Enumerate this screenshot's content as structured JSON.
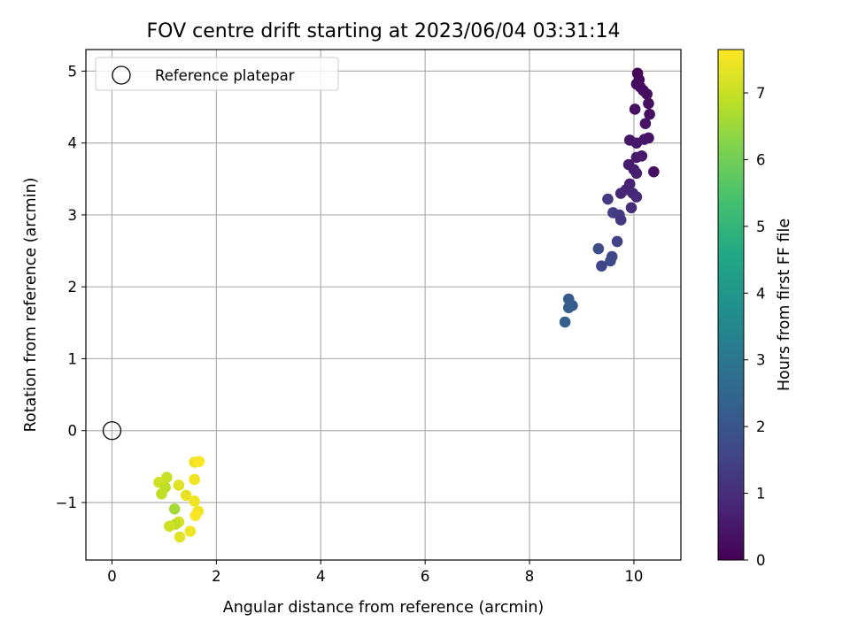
{
  "chart_data": {
    "type": "scatter",
    "title": "FOV centre drift starting at 2023/06/04 03:31:14",
    "xlabel": "Angular distance from reference (arcmin)",
    "ylabel": "Rotation from reference (arcmin)",
    "xlim": [
      -0.5,
      10.9
    ],
    "ylim": [
      -1.8,
      5.3
    ],
    "xticks": [
      0,
      2,
      4,
      6,
      8,
      10
    ],
    "yticks": [
      -1,
      0,
      1,
      2,
      3,
      4,
      5
    ],
    "xtick_labels": [
      "0",
      "2",
      "4",
      "6",
      "8",
      "10"
    ],
    "ytick_labels": [
      "−1",
      "0",
      "1",
      "2",
      "3",
      "4",
      "5"
    ],
    "grid": true,
    "legend": {
      "position": "top-left",
      "entries": [
        {
          "label": "Reference platepar",
          "marker": "open-circle",
          "color": "#000000"
        }
      ]
    },
    "reference_point": {
      "x": 0,
      "y": 0
    },
    "colorbar": {
      "label": "Hours from first FF file",
      "range": [
        0,
        7.65
      ],
      "ticks": [
        0,
        1,
        2,
        3,
        4,
        5,
        6,
        7
      ],
      "tick_labels": [
        "0",
        "1",
        "2",
        "3",
        "4",
        "5",
        "6",
        "7"
      ],
      "colormap": "viridis"
    },
    "points": [
      {
        "x": 10.07,
        "y": 4.97,
        "c": 0.1
      },
      {
        "x": 10.1,
        "y": 4.88,
        "c": 0.15
      },
      {
        "x": 10.05,
        "y": 4.82,
        "c": 0.2
      },
      {
        "x": 10.12,
        "y": 4.78,
        "c": 0.25
      },
      {
        "x": 10.18,
        "y": 4.73,
        "c": 0.25
      },
      {
        "x": 10.25,
        "y": 4.68,
        "c": 0.3
      },
      {
        "x": 10.28,
        "y": 4.55,
        "c": 0.3
      },
      {
        "x": 10.02,
        "y": 4.47,
        "c": 0.35
      },
      {
        "x": 10.3,
        "y": 4.4,
        "c": 0.35
      },
      {
        "x": 10.22,
        "y": 4.27,
        "c": 0.4
      },
      {
        "x": 10.28,
        "y": 4.07,
        "c": 0.4
      },
      {
        "x": 10.2,
        "y": 4.05,
        "c": 0.45
      },
      {
        "x": 9.92,
        "y": 4.04,
        "c": 0.45
      },
      {
        "x": 10.05,
        "y": 4.0,
        "c": 0.5
      },
      {
        "x": 10.15,
        "y": 3.82,
        "c": 0.5
      },
      {
        "x": 10.05,
        "y": 3.8,
        "c": 0.55
      },
      {
        "x": 9.9,
        "y": 3.7,
        "c": 0.6
      },
      {
        "x": 10.0,
        "y": 3.63,
        "c": 0.6
      },
      {
        "x": 10.05,
        "y": 3.58,
        "c": 0.65
      },
      {
        "x": 10.38,
        "y": 3.6,
        "c": 0.3
      },
      {
        "x": 9.92,
        "y": 3.43,
        "c": 0.75
      },
      {
        "x": 9.85,
        "y": 3.35,
        "c": 0.8
      },
      {
        "x": 9.75,
        "y": 3.3,
        "c": 0.85
      },
      {
        "x": 9.98,
        "y": 3.3,
        "c": 0.85
      },
      {
        "x": 10.05,
        "y": 3.25,
        "c": 0.9
      },
      {
        "x": 9.5,
        "y": 3.22,
        "c": 1.3
      },
      {
        "x": 9.95,
        "y": 3.1,
        "c": 1.0
      },
      {
        "x": 9.6,
        "y": 3.03,
        "c": 1.4
      },
      {
        "x": 9.72,
        "y": 3.0,
        "c": 1.3
      },
      {
        "x": 9.75,
        "y": 2.93,
        "c": 1.2
      },
      {
        "x": 9.68,
        "y": 2.63,
        "c": 1.5
      },
      {
        "x": 9.32,
        "y": 2.53,
        "c": 1.8
      },
      {
        "x": 9.58,
        "y": 2.42,
        "c": 1.6
      },
      {
        "x": 9.55,
        "y": 2.36,
        "c": 1.7
      },
      {
        "x": 9.38,
        "y": 2.29,
        "c": 1.6
      },
      {
        "x": 8.75,
        "y": 1.83,
        "c": 2.2
      },
      {
        "x": 8.82,
        "y": 1.74,
        "c": 2.2
      },
      {
        "x": 8.75,
        "y": 1.71,
        "c": 2.3
      },
      {
        "x": 8.68,
        "y": 1.51,
        "c": 2.3
      },
      {
        "x": 1.58,
        "y": -0.44,
        "c": 7.5
      },
      {
        "x": 1.67,
        "y": -0.43,
        "c": 7.6
      },
      {
        "x": 1.05,
        "y": -0.65,
        "c": 7.0
      },
      {
        "x": 1.58,
        "y": -0.68,
        "c": 7.5
      },
      {
        "x": 0.9,
        "y": -0.72,
        "c": 7.1
      },
      {
        "x": 1.28,
        "y": -0.76,
        "c": 7.3
      },
      {
        "x": 1.02,
        "y": -0.79,
        "c": 6.9
      },
      {
        "x": 0.95,
        "y": -0.88,
        "c": 6.9
      },
      {
        "x": 1.42,
        "y": -0.9,
        "c": 7.4
      },
      {
        "x": 1.58,
        "y": -0.98,
        "c": 7.5
      },
      {
        "x": 1.2,
        "y": -1.09,
        "c": 6.6
      },
      {
        "x": 1.65,
        "y": -1.12,
        "c": 7.5
      },
      {
        "x": 1.6,
        "y": -1.18,
        "c": 7.6
      },
      {
        "x": 1.28,
        "y": -1.27,
        "c": 7.2
      },
      {
        "x": 1.22,
        "y": -1.3,
        "c": 6.9
      },
      {
        "x": 1.1,
        "y": -1.33,
        "c": 7.1
      },
      {
        "x": 1.5,
        "y": -1.4,
        "c": 7.5
      },
      {
        "x": 1.3,
        "y": -1.48,
        "c": 7.3
      }
    ]
  }
}
